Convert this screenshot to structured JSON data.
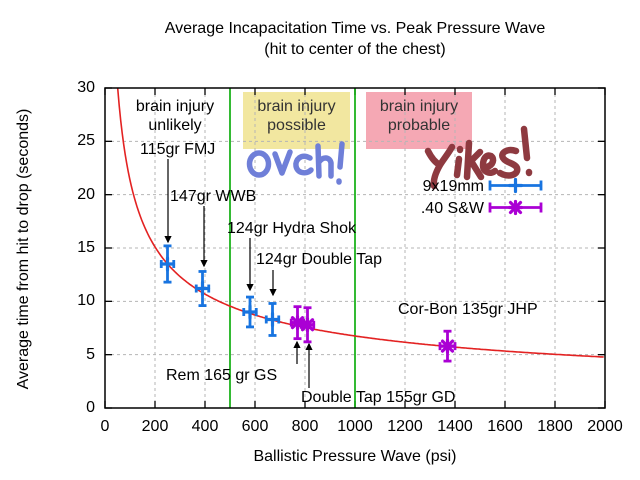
{
  "chart_data": {
    "type": "scatter",
    "title": "Average Incapacitation Time vs. Peak Pressure Wave",
    "subtitle": "(hit to center of the chest)",
    "xlabel": "Ballistic Pressure Wave (psi)",
    "ylabel": "Average time from hit to drop (seconds)",
    "xlim": [
      0,
      2000
    ],
    "ylim": [
      0,
      30
    ],
    "xticks": [
      0,
      200,
      400,
      600,
      800,
      1000,
      1200,
      1400,
      1600,
      1800,
      2000
    ],
    "yticks": [
      0,
      5,
      10,
      15,
      20,
      25,
      30
    ],
    "xtick_labels": [
      "0",
      "200",
      "400",
      "600",
      "800",
      "1000",
      "1200",
      "1400",
      "1600",
      "1800",
      "2000"
    ],
    "ytick_labels": [
      "0",
      "5",
      "10",
      "15",
      "20",
      "25",
      "30"
    ],
    "grid": true,
    "legend_position": "inside top-right",
    "colors": {
      "curve": "#e32222",
      "threshold": "#00a800",
      "grid": "#b5b5b5",
      "series_blue": "#1874e0",
      "series_magenta": "#aa00d4"
    },
    "fit_curve": {
      "description": "power fit, t ≈ 213.5 / sqrt(psi)",
      "k": 213.5
    },
    "threshold_lines_psi": [
      500,
      1000
    ],
    "series": [
      {
        "name": "9x19mm",
        "color": "#1874e0",
        "marker": "plus",
        "points": [
          {
            "label": "115gr FMJ",
            "x": 250,
            "y": 13.5,
            "yerr": 1.7,
            "xerr": 25
          },
          {
            "label": "147gr WWB",
            "x": 390,
            "y": 11.2,
            "yerr": 1.6,
            "xerr": 25
          },
          {
            "label": "124gr Hydra Shok",
            "x": 580,
            "y": 9.0,
            "yerr": 1.4,
            "xerr": 25
          },
          {
            "label": "124gr Double Tap",
            "x": 670,
            "y": 8.3,
            "yerr": 1.5,
            "xerr": 25
          }
        ]
      },
      {
        "name": ".40 S&W",
        "color": "#aa00d4",
        "marker": "star",
        "points": [
          {
            "label": "Rem 165 gr GS",
            "x": 770,
            "y": 8.0,
            "yerr": 1.5,
            "xerr": 25
          },
          {
            "label": "Double Tap 155gr GD",
            "x": 810,
            "y": 7.8,
            "yerr": 1.6,
            "xerr": 25
          },
          {
            "label": "Cor-Bon 135gr JHP",
            "x": 1370,
            "y": 5.8,
            "yerr": 1.4,
            "xerr": 30
          }
        ]
      }
    ],
    "regions": [
      {
        "label": "brain injury unlikely",
        "highlight": "none",
        "range_psi": [
          0,
          500
        ]
      },
      {
        "label": "brain injury possible",
        "highlight": "#f2e7a0",
        "range_psi": [
          500,
          1000
        ]
      },
      {
        "label": "brain injury probable",
        "highlight": "#f5a8b4",
        "range_psi": [
          1000,
          2000
        ]
      }
    ],
    "handwritten": [
      {
        "text": "Ouch!",
        "color": "#6f7fd8"
      },
      {
        "text": "Yikes!",
        "color": "#8e3a40"
      }
    ]
  }
}
